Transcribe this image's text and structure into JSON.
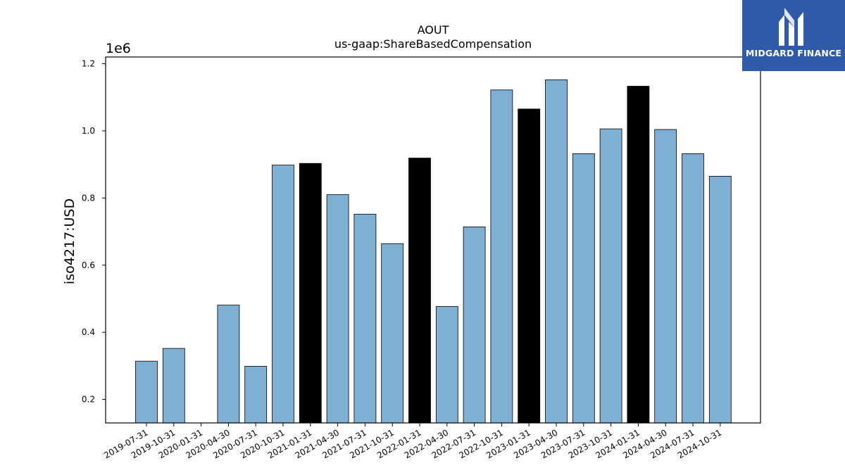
{
  "brand": {
    "name": "MIDGARD FINANCE",
    "logo_icon": "midgard-logo-icon",
    "background_color": "#2f5aa8"
  },
  "chart_data": {
    "type": "bar",
    "title": "AOUT",
    "subtitle": "us-gaap:ShareBasedCompensation",
    "xlabel": "",
    "ylabel": "iso4217:USD",
    "y_scale_label": "1e6",
    "ylim": [
      0.13,
      1.22
    ],
    "y_ticks": [
      0.2,
      0.4,
      0.6,
      0.8,
      1.0,
      1.2
    ],
    "y_tick_labels": [
      "0.2",
      "0.4",
      "0.6",
      "0.8",
      "1.0",
      "1.2"
    ],
    "grid": false,
    "legend": "none",
    "colors": {
      "default_bar": "#7fafd3",
      "highlight_bar": "#000000",
      "bar_edge": "#000000"
    },
    "categories": [
      "2019-07-31",
      "2019-10-31",
      "2020-01-31",
      "2020-04-30",
      "2020-07-31",
      "2020-10-31",
      "2021-01-31",
      "2021-04-30",
      "2021-07-31",
      "2021-10-31",
      "2022-01-31",
      "2022-04-30",
      "2022-07-31",
      "2022-10-31",
      "2023-01-31",
      "2023-04-30",
      "2023-07-31",
      "2023-10-31",
      "2024-01-31",
      "2024-04-30",
      "2024-07-31",
      "2024-10-31"
    ],
    "values": [
      0.314,
      0.352,
      null,
      0.481,
      0.299,
      0.898,
      0.903,
      0.81,
      0.752,
      0.664,
      0.919,
      0.477,
      0.714,
      1.122,
      1.065,
      1.152,
      0.932,
      1.006,
      1.133,
      1.004,
      0.932,
      0.865
    ],
    "highlighted": [
      false,
      false,
      false,
      false,
      false,
      false,
      true,
      false,
      false,
      false,
      true,
      false,
      false,
      false,
      true,
      false,
      false,
      false,
      true,
      false,
      false,
      false
    ]
  }
}
